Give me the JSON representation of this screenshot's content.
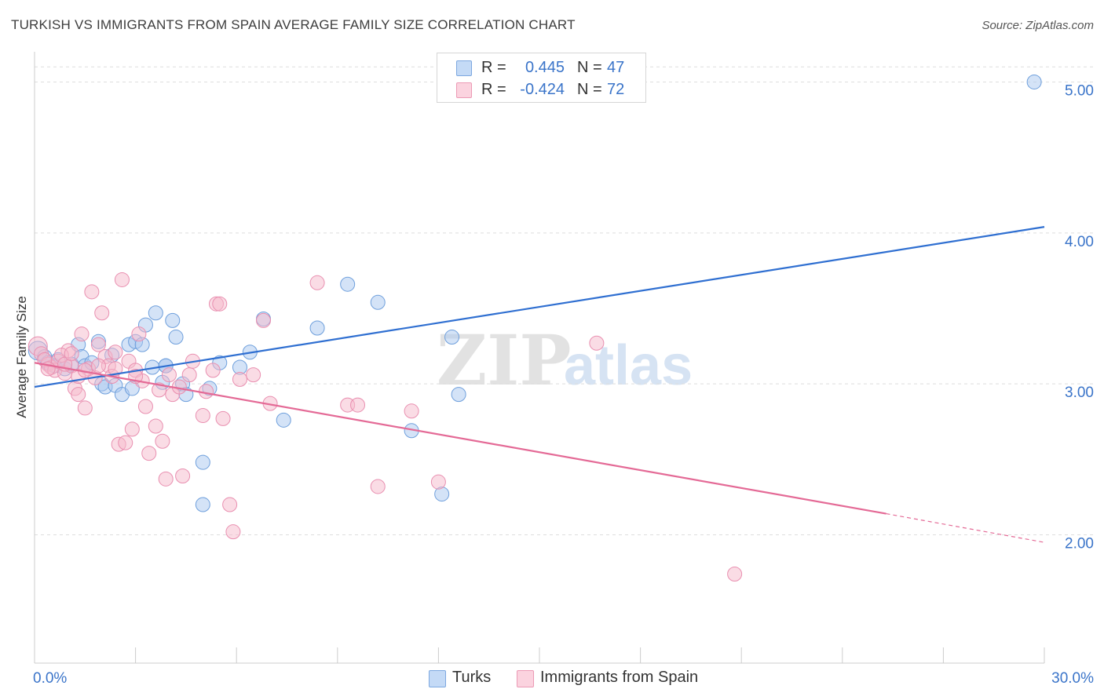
{
  "title": "TURKISH VS IMMIGRANTS FROM SPAIN AVERAGE FAMILY SIZE CORRELATION CHART",
  "source": "Source: ZipAtlas.com",
  "watermark": {
    "zip": "ZIP",
    "atlas": "atlas"
  },
  "legend": {
    "rows": [
      {
        "r_label": "R =",
        "r_value": "0.445",
        "n_label": "N =",
        "n_value": "47",
        "color": "#a9c8f0"
      },
      {
        "r_label": "R =",
        "r_value": "-0.424",
        "n_label": "N =",
        "n_value": "72",
        "color": "#f6b9cc"
      }
    ]
  },
  "bottom_legend": [
    {
      "label": "Turks",
      "color": "#a9c8f0"
    },
    {
      "label": "Immigrants from Spain",
      "color": "#f6b9cc"
    }
  ],
  "chart_data": {
    "type": "scatter",
    "title": "TURKISH VS IMMIGRANTS FROM SPAIN AVERAGE FAMILY SIZE CORRELATION CHART",
    "xlabel": "",
    "ylabel": "Average Family Size",
    "xlim": [
      0,
      30
    ],
    "ylim": [
      1.15,
      5.2
    ],
    "x_tick_labels": [
      "0.0%",
      "30.0%"
    ],
    "y_ticks": [
      2.0,
      3.0,
      4.0,
      5.0
    ],
    "y_tick_labels": [
      "2.00",
      "3.00",
      "4.00",
      "5.00"
    ],
    "grid": true,
    "colors": {
      "turks": "#2f6fd1",
      "spain": "#e46a96",
      "turks_fill": "#a9c8f0",
      "spain_fill": "#f6b9cc"
    },
    "series": [
      {
        "name": "Turks",
        "trend": {
          "x": [
            0.0,
            30.0
          ],
          "y": [
            2.98,
            4.04
          ]
        },
        "points": [
          [
            0.1,
            3.22
          ],
          [
            0.3,
            3.18
          ],
          [
            0.4,
            3.14
          ],
          [
            0.6,
            3.12
          ],
          [
            0.7,
            3.16
          ],
          [
            0.9,
            3.1
          ],
          [
            1.1,
            3.13
          ],
          [
            1.3,
            3.26
          ],
          [
            1.4,
            3.18
          ],
          [
            1.5,
            3.12
          ],
          [
            1.7,
            3.14
          ],
          [
            1.9,
            3.28
          ],
          [
            2.0,
            3.0
          ],
          [
            2.1,
            2.98
          ],
          [
            2.3,
            3.19
          ],
          [
            2.4,
            2.99
          ],
          [
            2.6,
            2.93
          ],
          [
            2.8,
            3.26
          ],
          [
            2.9,
            2.97
          ],
          [
            3.0,
            3.28
          ],
          [
            3.2,
            3.26
          ],
          [
            3.3,
            3.39
          ],
          [
            3.5,
            3.11
          ],
          [
            3.6,
            3.47
          ],
          [
            3.8,
            3.01
          ],
          [
            3.9,
            3.12
          ],
          [
            4.1,
            3.42
          ],
          [
            4.2,
            3.31
          ],
          [
            4.4,
            3.0
          ],
          [
            4.5,
            2.93
          ],
          [
            5.0,
            2.48
          ],
          [
            5.2,
            2.97
          ],
          [
            5.5,
            3.14
          ],
          [
            6.1,
            3.11
          ],
          [
            6.4,
            3.21
          ],
          [
            6.8,
            3.43
          ],
          [
            7.4,
            2.76
          ],
          [
            8.4,
            3.37
          ],
          [
            9.3,
            3.66
          ],
          [
            10.2,
            3.54
          ],
          [
            11.2,
            2.69
          ],
          [
            12.1,
            2.27
          ],
          [
            12.4,
            3.31
          ],
          [
            12.6,
            2.93
          ],
          [
            5.0,
            2.2
          ],
          [
            29.7,
            5.0
          ],
          [
            3.9,
            3.12
          ]
        ]
      },
      {
        "name": "Immigrants from Spain",
        "trend": {
          "x": [
            0.0,
            25.3
          ],
          "y": [
            3.14,
            2.14
          ]
        },
        "trend_dashed": {
          "x": [
            25.3,
            30.0
          ],
          "y": [
            2.14,
            1.95
          ]
        },
        "points": [
          [
            0.1,
            3.25
          ],
          [
            0.2,
            3.2
          ],
          [
            0.4,
            3.13
          ],
          [
            0.5,
            3.11
          ],
          [
            0.6,
            3.09
          ],
          [
            0.7,
            3.15
          ],
          [
            0.9,
            3.07
          ],
          [
            1.0,
            3.22
          ],
          [
            1.1,
            3.12
          ],
          [
            1.2,
            2.97
          ],
          [
            1.3,
            2.93
          ],
          [
            1.4,
            3.33
          ],
          [
            1.5,
            2.84
          ],
          [
            1.6,
            3.1
          ],
          [
            1.7,
            3.61
          ],
          [
            1.8,
            3.04
          ],
          [
            1.9,
            3.26
          ],
          [
            2.0,
            3.47
          ],
          [
            2.1,
            3.18
          ],
          [
            2.2,
            3.12
          ],
          [
            2.3,
            3.05
          ],
          [
            2.4,
            3.21
          ],
          [
            2.5,
            2.6
          ],
          [
            2.6,
            3.69
          ],
          [
            2.7,
            2.61
          ],
          [
            2.8,
            3.15
          ],
          [
            2.9,
            2.7
          ],
          [
            3.0,
            3.09
          ],
          [
            3.1,
            3.33
          ],
          [
            3.2,
            3.02
          ],
          [
            3.3,
            2.85
          ],
          [
            3.4,
            2.54
          ],
          [
            3.6,
            2.72
          ],
          [
            3.7,
            2.96
          ],
          [
            3.8,
            2.62
          ],
          [
            3.9,
            2.37
          ],
          [
            4.0,
            3.06
          ],
          [
            4.1,
            2.93
          ],
          [
            4.3,
            2.98
          ],
          [
            4.4,
            2.39
          ],
          [
            4.6,
            3.06
          ],
          [
            4.7,
            3.15
          ],
          [
            5.0,
            2.79
          ],
          [
            5.1,
            2.95
          ],
          [
            5.3,
            3.09
          ],
          [
            5.4,
            3.53
          ],
          [
            5.6,
            2.77
          ],
          [
            5.8,
            2.2
          ],
          [
            5.9,
            2.02
          ],
          [
            6.1,
            3.03
          ],
          [
            6.5,
            3.06
          ],
          [
            6.8,
            3.42
          ],
          [
            7.0,
            2.87
          ],
          [
            8.4,
            3.67
          ],
          [
            9.3,
            2.86
          ],
          [
            9.6,
            2.86
          ],
          [
            10.2,
            2.32
          ],
          [
            11.2,
            2.82
          ],
          [
            12.0,
            2.35
          ],
          [
            16.7,
            3.27
          ],
          [
            20.8,
            1.74
          ],
          [
            5.5,
            3.53
          ],
          [
            0.3,
            3.16
          ],
          [
            0.8,
            3.19
          ],
          [
            1.3,
            3.05
          ],
          [
            1.9,
            3.12
          ],
          [
            2.4,
            3.1
          ],
          [
            3.0,
            3.05
          ],
          [
            1.5,
            3.09
          ],
          [
            0.9,
            3.13
          ],
          [
            0.4,
            3.1
          ],
          [
            1.1,
            3.2
          ]
        ]
      }
    ]
  }
}
